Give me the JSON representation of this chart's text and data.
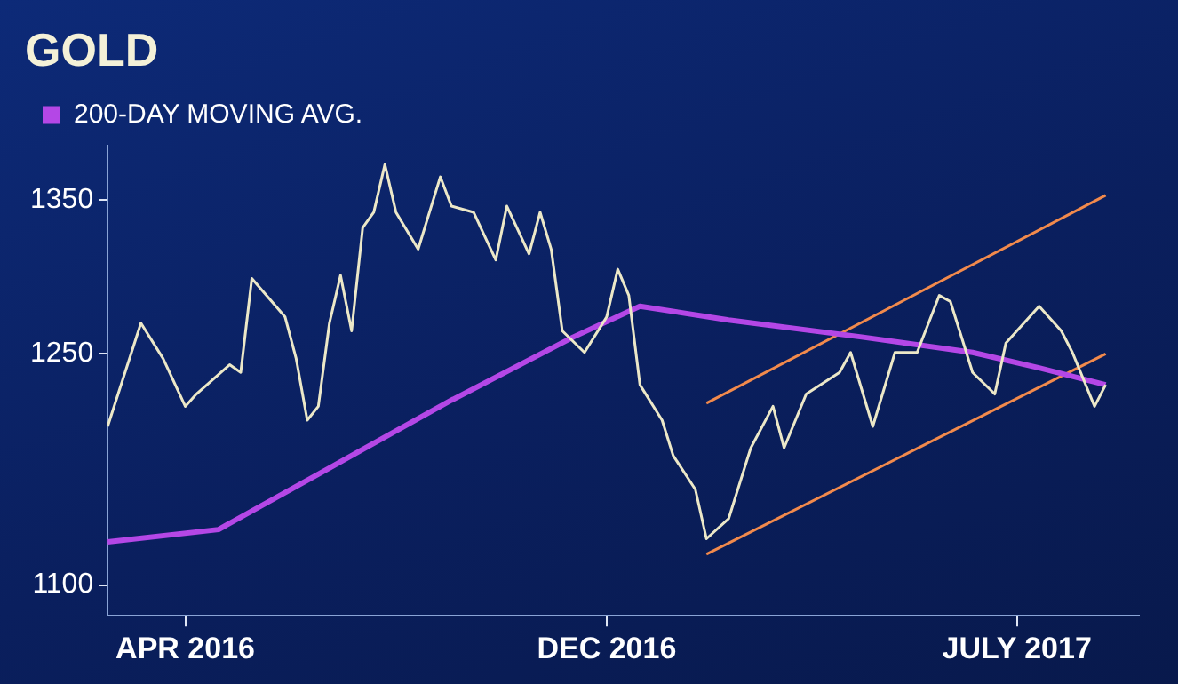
{
  "chart_data": {
    "type": "line",
    "title": "GOLD",
    "marker": "none",
    "grid": false,
    "legend": "top left",
    "categories": [
      null,
      null,
      null,
      null,
      null,
      null,
      null,
      "APR 2016",
      null,
      null,
      null,
      null,
      null,
      null,
      null,
      null,
      null,
      null,
      null,
      null,
      null,
      null,
      null,
      null,
      null,
      null,
      null,
      null,
      null,
      null,
      null,
      null,
      null,
      null,
      null,
      null,
      null,
      null,
      null,
      null,
      null,
      null,
      null,
      null,
      null,
      "DEC 2016",
      null,
      null,
      null,
      null,
      null,
      null,
      null,
      null,
      null,
      null,
      null,
      null,
      null,
      null,
      null,
      null,
      null,
      null,
      null,
      null,
      null,
      null,
      null,
      null,
      null,
      null,
      null,
      null,
      null,
      null,
      null,
      null,
      null,
      null,
      null,
      null,
      "JULY 2017",
      null,
      null,
      null,
      null,
      null,
      null,
      null,
      null,
      null,
      null,
      null
    ],
    "ylim": [
      1080,
      1385
    ],
    "yticks": [
      1100,
      1250,
      1350
    ],
    "series": [
      {
        "color": "#ece8c8",
        "values": [
          1203,
          null,
          null,
          1270,
          null,
          1247,
          null,
          1216,
          1224,
          null,
          null,
          1243,
          1238,
          1299,
          null,
          null,
          1274,
          1247,
          1207,
          1216,
          1270,
          1301,
          1265,
          1332,
          1342,
          1373,
          1342,
          null,
          1318,
          null,
          1365,
          1346,
          null,
          1342,
          null,
          1311,
          1346,
          null,
          1315,
          1342,
          1318,
          1265,
          null,
          1251,
          null,
          1274,
          1305,
          1288,
          1230,
          null,
          1207,
          1184,
          null,
          1162,
          1130,
          null,
          1143,
          null,
          1189,
          null,
          1216,
          1189,
          null,
          1224,
          null,
          null,
          1238,
          1251,
          null,
          1203,
          null,
          1251,
          null,
          1251,
          null,
          1288,
          1284,
          null,
          1238,
          null,
          1224,
          1257,
          null,
          null,
          1281,
          null,
          1265,
          1251,
          null,
          1216,
          1230,
          null,
          null,
          null
        ]
      },
      {
        "name": "200-DAY MOVING AVG.",
        "color": "#b447e6",
        "values": [
          1128,
          null,
          null,
          null,
          null,
          null,
          null,
          null,
          null,
          null,
          1136,
          null,
          null,
          null,
          null,
          null,
          null,
          null,
          null,
          null,
          1176,
          null,
          null,
          null,
          null,
          null,
          null,
          null,
          null,
          null,
          null,
          1220,
          null,
          null,
          null,
          null,
          null,
          null,
          null,
          null,
          null,
          null,
          1261,
          null,
          null,
          null,
          null,
          null,
          1281,
          null,
          null,
          null,
          null,
          null,
          null,
          null,
          1272,
          null,
          null,
          null,
          null,
          null,
          null,
          null,
          null,
          null,
          null,
          null,
          1261,
          null,
          null,
          null,
          null,
          null,
          null,
          null,
          null,
          null,
          1251,
          null,
          null,
          null,
          null,
          null,
          1241,
          null,
          null,
          null,
          null,
          null,
          1230,
          null,
          null,
          null
        ]
      },
      {
        "color": "#f28a4c",
        "values": [
          null,
          null,
          null,
          null,
          null,
          null,
          null,
          null,
          null,
          null,
          null,
          null,
          null,
          null,
          null,
          null,
          null,
          null,
          null,
          null,
          null,
          null,
          null,
          null,
          null,
          null,
          null,
          null,
          null,
          null,
          null,
          null,
          null,
          null,
          null,
          null,
          null,
          null,
          null,
          null,
          null,
          null,
          null,
          null,
          null,
          null,
          null,
          null,
          null,
          null,
          null,
          null,
          null,
          null,
          1218,
          null,
          null,
          null,
          null,
          null,
          null,
          null,
          null,
          null,
          null,
          null,
          null,
          null,
          null,
          null,
          null,
          null,
          null,
          null,
          null,
          null,
          null,
          null,
          null,
          null,
          null,
          null,
          null,
          null,
          null,
          null,
          null,
          null,
          null,
          null,
          1353,
          null,
          null,
          null
        ]
      },
      {
        "color": "#f28a4c",
        "values": [
          null,
          null,
          null,
          null,
          null,
          null,
          null,
          null,
          null,
          null,
          null,
          null,
          null,
          null,
          null,
          null,
          null,
          null,
          null,
          null,
          null,
          null,
          null,
          null,
          null,
          null,
          null,
          null,
          null,
          null,
          null,
          null,
          null,
          null,
          null,
          null,
          null,
          null,
          null,
          null,
          null,
          null,
          null,
          null,
          null,
          null,
          null,
          null,
          null,
          null,
          null,
          null,
          null,
          null,
          1120,
          null,
          null,
          null,
          null,
          null,
          null,
          null,
          null,
          null,
          null,
          null,
          null,
          null,
          null,
          null,
          null,
          null,
          null,
          null,
          null,
          null,
          null,
          null,
          null,
          null,
          null,
          null,
          null,
          null,
          null,
          null,
          null,
          null,
          null,
          null,
          1250,
          null,
          null,
          null
        ]
      }
    ]
  }
}
